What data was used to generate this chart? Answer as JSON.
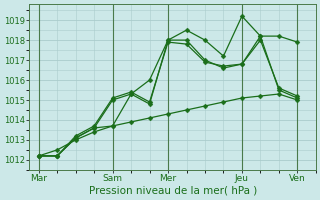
{
  "background_color": "#cce8e8",
  "grid_color": "#aacccc",
  "line_color": "#1a6e1a",
  "ylim": [
    1011.5,
    1019.8
  ],
  "yticks": [
    1012,
    1013,
    1014,
    1015,
    1016,
    1017,
    1018,
    1019
  ],
  "xlabel": "Pression niveau de la mer( hPa )",
  "xtick_labels": [
    "Mar",
    "Sam",
    "Mer",
    "Jeu",
    "Ven"
  ],
  "xtick_positions": [
    0,
    32,
    56,
    88,
    112
  ],
  "xlim": [
    -4,
    120
  ],
  "line1_x": [
    0,
    8,
    16,
    24,
    32,
    40,
    48,
    56,
    64,
    72,
    80,
    88,
    96,
    104,
    112
  ],
  "line1_y": [
    1012.2,
    1012.2,
    1013.1,
    1013.6,
    1013.7,
    1015.3,
    1016.0,
    1018.0,
    1018.5,
    1018.0,
    1017.2,
    1019.2,
    1018.2,
    1018.2,
    1017.9
  ],
  "line2_x": [
    0,
    8,
    16,
    24,
    32,
    40,
    48,
    56,
    64,
    72,
    80,
    88,
    96,
    104,
    112
  ],
  "line2_y": [
    1012.2,
    1012.2,
    1013.1,
    1013.6,
    1015.0,
    1015.3,
    1014.8,
    1018.0,
    1018.0,
    1017.0,
    1016.6,
    1016.8,
    1018.2,
    1015.5,
    1015.1
  ],
  "line3_x": [
    0,
    8,
    16,
    24,
    32,
    40,
    48,
    56,
    64,
    72,
    80,
    88,
    96,
    104,
    112
  ],
  "line3_y": [
    1012.2,
    1012.2,
    1013.2,
    1013.7,
    1015.1,
    1015.4,
    1014.9,
    1017.9,
    1017.8,
    1016.9,
    1016.7,
    1016.8,
    1018.0,
    1015.6,
    1015.2
  ],
  "line4_x": [
    0,
    8,
    16,
    24,
    32,
    40,
    48,
    56,
    64,
    72,
    80,
    88,
    96,
    104,
    112
  ],
  "line4_y": [
    1012.2,
    1012.5,
    1013.0,
    1013.4,
    1013.7,
    1013.9,
    1014.1,
    1014.3,
    1014.5,
    1014.7,
    1014.9,
    1015.1,
    1015.2,
    1015.3,
    1015.0
  ],
  "marker_size": 2.5,
  "line_width": 0.9,
  "ytick_fontsize": 6,
  "xtick_fontsize": 6.5,
  "xlabel_fontsize": 7.5
}
